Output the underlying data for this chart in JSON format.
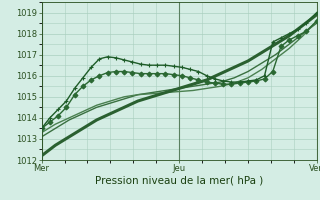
{
  "title": "Pression niveau de la mer( hPa )",
  "bg_color": "#d4ede4",
  "grid_color": "#aacfbf",
  "ylim": [
    1012,
    1019.5
  ],
  "yticks": [
    1012,
    1013,
    1014,
    1015,
    1016,
    1017,
    1018,
    1019
  ],
  "xtick_positions": [
    0.0,
    0.5,
    1.0
  ],
  "xtick_labels": [
    "Mer",
    "Jeu",
    "Ven"
  ],
  "series": [
    {
      "x": [
        0.0,
        0.05,
        0.1,
        0.15,
        0.2,
        0.25,
        0.3,
        0.35,
        0.4,
        0.45,
        0.5,
        0.55,
        0.6,
        0.65,
        0.7,
        0.75,
        0.8,
        0.85,
        0.9,
        0.95,
        1.0
      ],
      "y": [
        1012.2,
        1012.7,
        1013.1,
        1013.5,
        1013.9,
        1014.2,
        1014.5,
        1014.8,
        1015.0,
        1015.2,
        1015.4,
        1015.6,
        1015.8,
        1016.1,
        1016.4,
        1016.7,
        1017.1,
        1017.5,
        1017.9,
        1018.4,
        1018.9
      ],
      "color": "#2a6030",
      "lw": 2.2,
      "marker": null,
      "zorder": 3
    },
    {
      "x": [
        0.0,
        0.05,
        0.1,
        0.15,
        0.2,
        0.25,
        0.3,
        0.35,
        0.4,
        0.45,
        0.5,
        0.55,
        0.6,
        0.65,
        0.7,
        0.75,
        0.8,
        0.85,
        0.9,
        0.95,
        1.0
      ],
      "y": [
        1013.1,
        1013.5,
        1013.9,
        1014.2,
        1014.5,
        1014.7,
        1014.9,
        1015.1,
        1015.2,
        1015.3,
        1015.4,
        1015.5,
        1015.6,
        1015.7,
        1015.9,
        1016.2,
        1016.6,
        1017.0,
        1017.5,
        1018.0,
        1018.5
      ],
      "color": "#3a7040",
      "lw": 1.0,
      "marker": null,
      "zorder": 2
    },
    {
      "x": [
        0.0,
        0.05,
        0.1,
        0.15,
        0.2,
        0.25,
        0.3,
        0.35,
        0.4,
        0.45,
        0.5,
        0.55,
        0.6,
        0.65,
        0.7,
        0.75,
        0.8,
        0.85,
        0.9,
        0.95,
        1.0
      ],
      "y": [
        1013.3,
        1013.7,
        1014.0,
        1014.3,
        1014.6,
        1014.8,
        1015.0,
        1015.1,
        1015.15,
        1015.2,
        1015.25,
        1015.3,
        1015.4,
        1015.5,
        1015.65,
        1015.9,
        1016.3,
        1016.8,
        1017.3,
        1017.9,
        1018.6
      ],
      "color": "#4a8050",
      "lw": 1.0,
      "marker": null,
      "zorder": 2
    },
    {
      "x": [
        0.0,
        0.03,
        0.06,
        0.09,
        0.12,
        0.15,
        0.18,
        0.21,
        0.24,
        0.27,
        0.3,
        0.33,
        0.36,
        0.39,
        0.42,
        0.45,
        0.48,
        0.51,
        0.54,
        0.57,
        0.6,
        0.63,
        0.66,
        0.69,
        0.72,
        0.75,
        0.78,
        0.81,
        0.84,
        0.87,
        0.9,
        0.93,
        0.96,
        1.0
      ],
      "y": [
        1013.5,
        1014.0,
        1014.4,
        1014.8,
        1015.4,
        1015.9,
        1016.4,
        1016.8,
        1016.9,
        1016.85,
        1016.75,
        1016.65,
        1016.55,
        1016.5,
        1016.5,
        1016.5,
        1016.45,
        1016.4,
        1016.3,
        1016.2,
        1016.0,
        1015.85,
        1015.75,
        1015.7,
        1015.7,
        1015.75,
        1015.8,
        1016.0,
        1017.6,
        1017.8,
        1018.0,
        1018.2,
        1018.5,
        1019.0
      ],
      "color": "#1e5c28",
      "lw": 1.0,
      "marker": "+",
      "ms": 3.5,
      "zorder": 5
    },
    {
      "x": [
        0.0,
        0.03,
        0.06,
        0.09,
        0.12,
        0.15,
        0.18,
        0.21,
        0.24,
        0.27,
        0.3,
        0.33,
        0.36,
        0.39,
        0.42,
        0.45,
        0.48,
        0.51,
        0.54,
        0.57,
        0.6,
        0.63,
        0.66,
        0.69,
        0.72,
        0.75,
        0.78,
        0.81,
        0.84,
        0.87,
        0.9,
        0.93,
        0.96,
        1.0
      ],
      "y": [
        1013.5,
        1013.8,
        1014.1,
        1014.5,
        1015.1,
        1015.5,
        1015.8,
        1016.0,
        1016.15,
        1016.2,
        1016.2,
        1016.15,
        1016.1,
        1016.1,
        1016.1,
        1016.1,
        1016.05,
        1016.0,
        1015.9,
        1015.8,
        1015.7,
        1015.65,
        1015.6,
        1015.6,
        1015.65,
        1015.7,
        1015.75,
        1015.85,
        1016.2,
        1017.4,
        1017.7,
        1017.9,
        1018.1,
        1018.6
      ],
      "color": "#2a6832",
      "lw": 1.0,
      "marker": "D",
      "ms": 2.5,
      "zorder": 4
    }
  ],
  "vline_color": "#5a8060",
  "vline_lw": 0.8,
  "tick_color": "#2a5020",
  "text_color": "#1a4010",
  "fontsize_ticks": 6.0,
  "fontsize_xlabel": 7.5
}
